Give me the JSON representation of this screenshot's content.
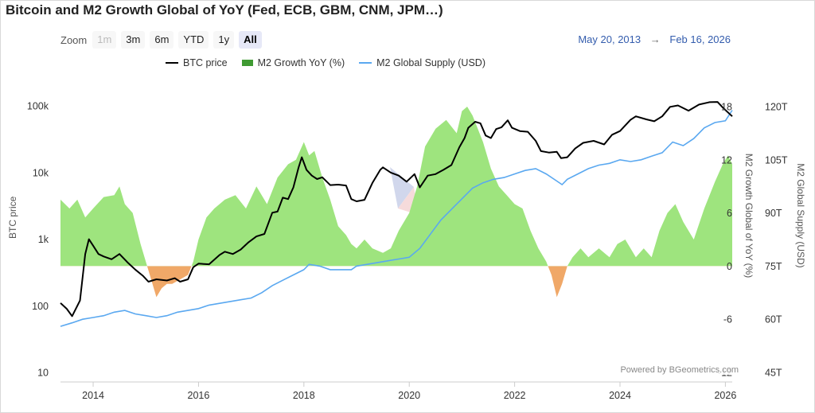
{
  "title": "Bitcoin and M2 Growth Global of YoY (Fed, ECB, GBM, CNM, JPM…)",
  "zoom": {
    "label": "Zoom",
    "buttons": [
      {
        "label": "1m",
        "state": "disabled"
      },
      {
        "label": "3m",
        "state": "normal"
      },
      {
        "label": "6m",
        "state": "normal"
      },
      {
        "label": "YTD",
        "state": "normal"
      },
      {
        "label": "1y",
        "state": "normal"
      },
      {
        "label": "All",
        "state": "active"
      }
    ]
  },
  "range": {
    "from": "May 20, 2013",
    "arrow": "→",
    "to": "Feb 16, 2026"
  },
  "credit": "Powered by BGeometrics.com",
  "colors": {
    "btc": "#000000",
    "growth_pos": "#9ee47e",
    "growth_neg": "#f0a868",
    "supply": "#5aa8f0",
    "legend_growth": "#3f9a32",
    "watermark": "#c8d6ec"
  },
  "chart_data": {
    "type": "line",
    "title": "Bitcoin and M2 Growth Global of YoY (Fed, ECB, GBM, CNM, JPM…)",
    "x_range": [
      2013.38,
      2026.13
    ],
    "x_ticks": [
      2014,
      2016,
      2018,
      2020,
      2022,
      2024,
      2026
    ],
    "x_tick_labels": [
      "2014",
      "2016",
      "2018",
      "2020",
      "2022",
      "2024",
      "2026"
    ],
    "axes": {
      "btc": {
        "title": "BTC price",
        "scale": "log",
        "range": [
          10,
          200000
        ],
        "ticks": [
          10,
          100,
          1000,
          10000,
          100000
        ],
        "tick_labels": [
          "10",
          "100",
          "1k",
          "10k",
          "100k"
        ]
      },
      "growth": {
        "title": "M2 Growth Global of YoY (%)",
        "range": [
          -12,
          18
        ],
        "ticks": [
          -12,
          -6,
          0,
          6,
          12,
          18
        ],
        "tick_labels": [
          "-12",
          "-6",
          "0",
          "6",
          "12",
          "18"
        ]
      },
      "supply": {
        "title": "M2 Global Supply (USD)",
        "range": [
          45,
          120
        ],
        "ticks": [
          45,
          60,
          75,
          90,
          105,
          120
        ],
        "tick_labels": [
          "45T",
          "60T",
          "75T",
          "90T",
          "105T",
          "120T"
        ]
      }
    },
    "series": [
      {
        "name": "BTC price",
        "axis": "btc",
        "type": "line",
        "x": [
          2013.38,
          2013.5,
          2013.6,
          2013.75,
          2013.85,
          2013.92,
          2014.0,
          2014.1,
          2014.2,
          2014.35,
          2014.5,
          2014.65,
          2014.8,
          2014.95,
          2015.05,
          2015.2,
          2015.4,
          2015.55,
          2015.65,
          2015.8,
          2015.9,
          2016.0,
          2016.2,
          2016.4,
          2016.5,
          2016.65,
          2016.8,
          2016.95,
          2017.1,
          2017.25,
          2017.4,
          2017.5,
          2017.6,
          2017.7,
          2017.8,
          2017.9,
          2017.96,
          2018.05,
          2018.15,
          2018.25,
          2018.35,
          2018.5,
          2018.65,
          2018.8,
          2018.9,
          2019.0,
          2019.15,
          2019.3,
          2019.45,
          2019.5,
          2019.65,
          2019.8,
          2019.95,
          2020.1,
          2020.2,
          2020.35,
          2020.5,
          2020.65,
          2020.8,
          2020.95,
          2021.05,
          2021.12,
          2021.25,
          2021.35,
          2021.45,
          2021.55,
          2021.65,
          2021.75,
          2021.87,
          2021.95,
          2022.1,
          2022.25,
          2022.4,
          2022.5,
          2022.65,
          2022.8,
          2022.88,
          2023.0,
          2023.15,
          2023.3,
          2023.5,
          2023.7,
          2023.85,
          2024.0,
          2024.2,
          2024.3,
          2024.5,
          2024.65,
          2024.8,
          2024.95,
          2025.1,
          2025.3,
          2025.5,
          2025.7,
          2025.85,
          2025.95,
          2026.05,
          2026.13
        ],
        "y": [
          110,
          90,
          70,
          120,
          600,
          1000,
          800,
          600,
          550,
          500,
          600,
          450,
          350,
          280,
          230,
          250,
          240,
          260,
          230,
          250,
          380,
          430,
          420,
          580,
          650,
          600,
          700,
          900,
          1100,
          1200,
          2500,
          2600,
          4200,
          4000,
          6000,
          12000,
          17000,
          11000,
          9000,
          8000,
          8500,
          6500,
          6600,
          6400,
          4000,
          3700,
          3900,
          7000,
          11000,
          12000,
          10000,
          9000,
          7300,
          9500,
          6000,
          9000,
          9500,
          11000,
          13000,
          24000,
          33000,
          47000,
          58000,
          55000,
          36000,
          33000,
          45000,
          48000,
          61000,
          47000,
          42000,
          41000,
          30000,
          21000,
          20000,
          20500,
          16500,
          17000,
          23000,
          28000,
          30000,
          26500,
          37000,
          42000,
          62000,
          70000,
          63000,
          59000,
          70000,
          97000,
          102000,
          85000,
          105000,
          114000,
          115000,
          95000,
          80000,
          70000
        ]
      },
      {
        "name": "M2 Growth YoY (%)",
        "axis": "growth",
        "type": "area",
        "x": [
          2013.38,
          2013.55,
          2013.7,
          2013.85,
          2014.0,
          2014.2,
          2014.4,
          2014.5,
          2014.6,
          2014.75,
          2014.9,
          2015.0,
          2015.1,
          2015.2,
          2015.3,
          2015.4,
          2015.5,
          2015.65,
          2015.8,
          2015.9,
          2016.0,
          2016.15,
          2016.3,
          2016.5,
          2016.7,
          2016.9,
          2017.1,
          2017.3,
          2017.5,
          2017.7,
          2017.85,
          2018.0,
          2018.1,
          2018.2,
          2018.35,
          2018.5,
          2018.65,
          2018.8,
          2018.9,
          2019.0,
          2019.15,
          2019.3,
          2019.5,
          2019.65,
          2019.8,
          2020.0,
          2020.15,
          2020.3,
          2020.5,
          2020.7,
          2020.9,
          2021.0,
          2021.1,
          2021.2,
          2021.3,
          2021.4,
          2021.55,
          2021.7,
          2021.85,
          2022.0,
          2022.15,
          2022.3,
          2022.45,
          2022.6,
          2022.7,
          2022.8,
          2022.9,
          2023.0,
          2023.1,
          2023.25,
          2023.4,
          2023.6,
          2023.8,
          2023.95,
          2024.1,
          2024.3,
          2024.45,
          2024.6,
          2024.75,
          2024.9,
          2025.05,
          2025.2,
          2025.4,
          2025.6,
          2025.8,
          2025.95,
          2026.05,
          2026.13
        ],
        "y": [
          7.5,
          6.5,
          7.5,
          5.5,
          6.5,
          7.8,
          8.0,
          9.0,
          7.0,
          6.0,
          2.5,
          0.5,
          -1.5,
          -3.5,
          -2.5,
          -2.0,
          -2.0,
          -1.5,
          -1.0,
          0.5,
          3.0,
          5.5,
          6.5,
          7.5,
          8.0,
          6.5,
          9.0,
          7.0,
          10.0,
          11.5,
          12.0,
          14.0,
          12.5,
          13.0,
          10.0,
          7.5,
          4.5,
          3.5,
          2.5,
          2.0,
          3.0,
          2.0,
          1.5,
          2.0,
          4.0,
          6.0,
          9.0,
          13.5,
          15.5,
          16.5,
          15.0,
          17.5,
          18.0,
          17.0,
          15.5,
          14.0,
          11.0,
          9.0,
          8.0,
          7.0,
          6.5,
          4.0,
          2.0,
          0.5,
          -1.0,
          -3.5,
          -2.0,
          0.0,
          1.0,
          2.0,
          1.0,
          2.0,
          1.0,
          2.5,
          3.0,
          1.0,
          2.0,
          1.0,
          4.0,
          6.0,
          7.0,
          5.0,
          3.0,
          6.5,
          9.5,
          11.5,
          12.5,
          11.5
        ]
      },
      {
        "name": "M2 Global Supply (USD)",
        "axis": "supply",
        "type": "line",
        "x": [
          2013.38,
          2013.6,
          2013.8,
          2014.0,
          2014.2,
          2014.4,
          2014.6,
          2014.8,
          2015.0,
          2015.2,
          2015.4,
          2015.6,
          2015.8,
          2016.0,
          2016.2,
          2016.4,
          2016.6,
          2016.8,
          2017.0,
          2017.2,
          2017.4,
          2017.6,
          2017.8,
          2018.0,
          2018.1,
          2018.3,
          2018.5,
          2018.7,
          2018.9,
          2019.0,
          2019.2,
          2019.4,
          2019.6,
          2019.8,
          2020.0,
          2020.2,
          2020.4,
          2020.6,
          2020.8,
          2021.0,
          2021.2,
          2021.4,
          2021.6,
          2021.8,
          2022.0,
          2022.2,
          2022.4,
          2022.6,
          2022.8,
          2022.9,
          2023.0,
          2023.2,
          2023.4,
          2023.6,
          2023.8,
          2024.0,
          2024.2,
          2024.4,
          2024.6,
          2024.8,
          2025.0,
          2025.2,
          2025.4,
          2025.6,
          2025.8,
          2026.0,
          2026.13
        ],
        "y": [
          58,
          59,
          60,
          60.5,
          61,
          62,
          62.5,
          61.5,
          61,
          60.5,
          61,
          62,
          62.5,
          63,
          64,
          64.5,
          65,
          65.5,
          66,
          67.5,
          69.5,
          71,
          72.5,
          74,
          75.5,
          75,
          74,
          74,
          74,
          75,
          75.5,
          76,
          76.5,
          77,
          77.5,
          80,
          84,
          88,
          91,
          94,
          97,
          98.5,
          99.5,
          100,
          101,
          102,
          102.5,
          101,
          99,
          98,
          99.5,
          101,
          102.5,
          103.5,
          104,
          105,
          104.5,
          105,
          106,
          107,
          110,
          109,
          111,
          114,
          115.5,
          116,
          119
        ]
      }
    ]
  }
}
